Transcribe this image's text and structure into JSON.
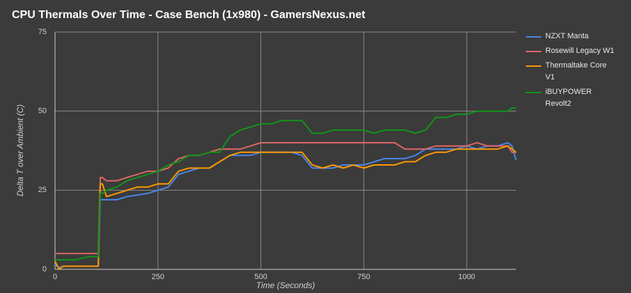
{
  "chart_data": {
    "type": "line",
    "title": "CPU Thermals Over Time - Case Bench (1x980) - GamersNexus.net",
    "x_label": "Time (Seconds)",
    "y_label": "Delta T over Ambient (C)",
    "xlim": [
      0,
      1120
    ],
    "ylim": [
      0,
      75
    ],
    "xticks": [
      0,
      250,
      500,
      750,
      1000
    ],
    "yticks": [
      0,
      25,
      50,
      75
    ],
    "grid": true,
    "x": [
      0,
      10,
      20,
      50,
      80,
      100,
      105,
      110,
      115,
      125,
      150,
      175,
      200,
      225,
      250,
      275,
      300,
      325,
      350,
      375,
      400,
      425,
      450,
      475,
      500,
      525,
      550,
      575,
      600,
      625,
      650,
      675,
      700,
      725,
      750,
      775,
      800,
      825,
      850,
      875,
      900,
      925,
      950,
      975,
      1000,
      1025,
      1050,
      1075,
      1100,
      1110,
      1120
    ],
    "series": [
      {
        "name": "NZXT Manta",
        "color": "#4a86e8",
        "values": [
          1.5,
          0.5,
          1,
          1,
          1,
          1,
          1,
          22,
          22,
          22,
          22,
          23,
          23.5,
          24,
          25,
          26,
          30,
          31,
          32,
          32,
          34,
          36,
          36,
          36,
          37,
          37,
          37,
          37,
          36,
          32,
          32,
          32,
          33,
          33,
          33,
          34,
          35,
          35,
          35,
          36,
          38,
          38,
          38,
          38,
          39,
          38,
          39,
          39,
          40,
          39,
          34.5
        ]
      },
      {
        "name": "Rosewill Legacy W1",
        "color": "#e06666",
        "values": [
          5,
          5,
          5,
          5,
          5,
          5,
          5,
          29,
          29,
          28,
          28,
          29,
          30,
          31,
          31,
          32,
          35,
          36,
          36,
          37,
          38,
          38,
          38,
          39,
          40,
          40,
          40,
          40,
          40,
          40,
          40,
          40,
          40,
          40,
          40,
          40,
          40,
          40,
          38,
          38,
          38,
          39,
          39,
          39,
          39,
          40,
          39,
          39,
          39,
          37,
          37
        ]
      },
      {
        "name": "Thermaltake Core V1",
        "color": "#ff9900",
        "values": [
          2.5,
          0,
          1,
          1,
          1,
          1,
          1,
          27,
          27,
          23,
          24,
          25,
          26,
          26,
          27,
          27,
          31,
          32,
          32,
          32,
          34,
          36,
          37,
          37,
          37,
          37,
          37,
          37,
          37,
          33,
          32,
          33,
          32,
          33,
          32,
          33,
          33,
          33,
          34,
          34,
          36,
          37,
          37,
          38,
          38,
          38,
          38,
          38,
          39,
          38,
          37
        ]
      },
      {
        "name": "iBUYPOWER Revolt2",
        "color": "#109618",
        "values": [
          3,
          3,
          3,
          3,
          4,
          4,
          4,
          24,
          24,
          25,
          26,
          28,
          29,
          30,
          31,
          33,
          34,
          36,
          36,
          37,
          37,
          42,
          44,
          45,
          46,
          46,
          47,
          47,
          47,
          43,
          43,
          44,
          44,
          44,
          44,
          43,
          44,
          44,
          44,
          43,
          44,
          48,
          48,
          49,
          49,
          50,
          50,
          50,
          50,
          51,
          51
        ]
      }
    ]
  }
}
